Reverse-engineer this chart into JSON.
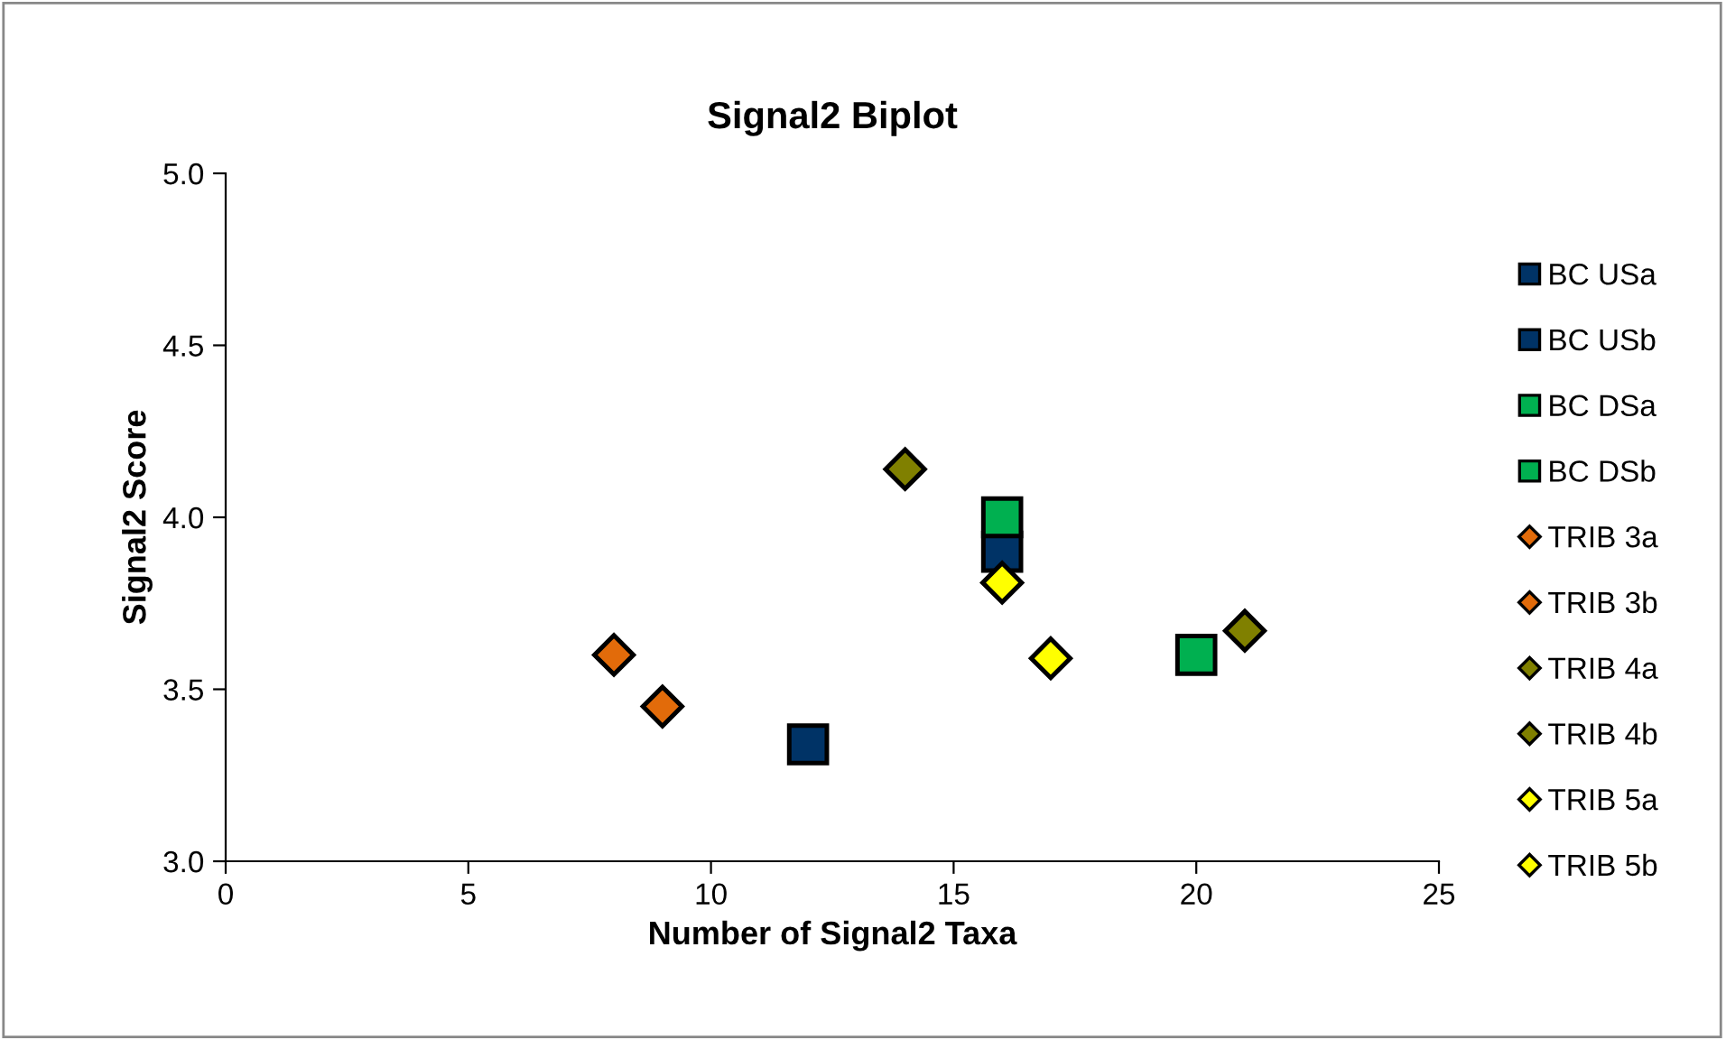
{
  "chart_data": {
    "type": "scatter",
    "title": "Signal2 Biplot",
    "xlabel": "Number of Signal2 Taxa",
    "ylabel": "Signal2 Score",
    "xlim": [
      0,
      25
    ],
    "xticks": [
      0,
      5,
      10,
      15,
      20,
      25
    ],
    "ylim": [
      3.0,
      5.0
    ],
    "yticks": [
      {
        "value": 3.0,
        "label": "3.0"
      },
      {
        "value": 3.5,
        "label": "3.5"
      },
      {
        "value": 4.0,
        "label": "4.0"
      },
      {
        "value": 4.5,
        "label": "4.5"
      },
      {
        "value": 5.0,
        "label": "5.0"
      }
    ],
    "grid": false,
    "legend": "right",
    "series": [
      {
        "name": "BC USa",
        "color": "#003366",
        "marker": "square",
        "x": [
          12
        ],
        "values": [
          3.34
        ]
      },
      {
        "name": "BC USb",
        "color": "#003366",
        "marker": "square",
        "x": [
          16
        ],
        "values": [
          3.9
        ]
      },
      {
        "name": "BC DSa",
        "color": "#00b050",
        "marker": "square",
        "x": [
          16
        ],
        "values": [
          4.0
        ]
      },
      {
        "name": "BC DSb",
        "color": "#00b050",
        "marker": "square",
        "x": [
          20
        ],
        "values": [
          3.6
        ]
      },
      {
        "name": "TRIB 3a",
        "color": "#e26b0a",
        "marker": "diamond",
        "x": [
          8
        ],
        "values": [
          3.6
        ]
      },
      {
        "name": "TRIB 3b",
        "color": "#e26b0a",
        "marker": "diamond",
        "x": [
          9
        ],
        "values": [
          3.45
        ]
      },
      {
        "name": "TRIB 4a",
        "color": "#808000",
        "marker": "diamond",
        "x": [
          14
        ],
        "values": [
          4.14
        ]
      },
      {
        "name": "TRIB 4b",
        "color": "#808000",
        "marker": "diamond",
        "x": [
          21
        ],
        "values": [
          3.67
        ]
      },
      {
        "name": "TRIB 5a",
        "color": "#ffff00",
        "marker": "diamond",
        "x": [
          16
        ],
        "values": [
          3.81
        ]
      },
      {
        "name": "TRIB 5b",
        "color": "#ffff00",
        "marker": "diamond",
        "x": [
          17
        ],
        "values": [
          3.59
        ]
      }
    ]
  }
}
